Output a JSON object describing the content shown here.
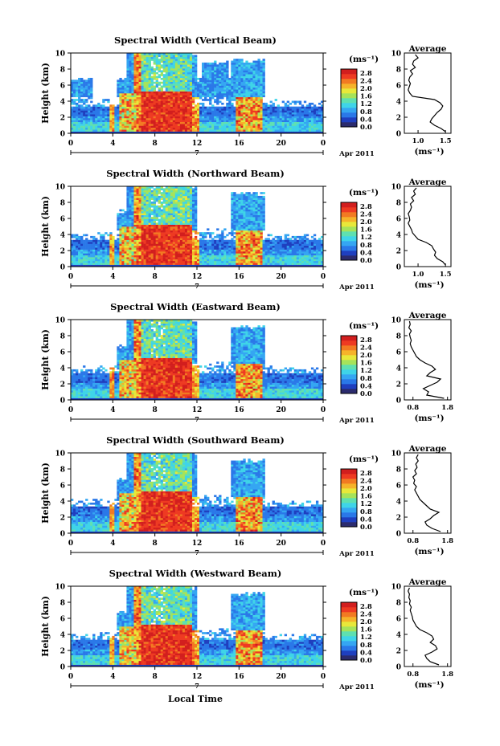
{
  "figure": {
    "date_label": "Apr 2011",
    "date_day": "7",
    "xlabel": "Local Time",
    "unit_label": "(ms⁻¹)",
    "avg_title": "Average",
    "avg_xlabel": "(ms⁻¹)",
    "ylabel": "Height (km)",
    "colormap": [
      "#2b2b6e",
      "#1f3fbf",
      "#2a78e8",
      "#35a6f2",
      "#3fd4e8",
      "#5fe0b0",
      "#a6e35a",
      "#e8e83a",
      "#f6b32a",
      "#f27a22",
      "#ee3a22",
      "#d21e1e"
    ]
  },
  "chart_data": [
    {
      "type": "heatmap",
      "title": "Spectral Width (Vertical Beam)",
      "x_ticks": [
        "0",
        "4",
        "8",
        "12",
        "16",
        "20",
        "0"
      ],
      "xlim": [
        0,
        24
      ],
      "y_ticks": [
        "0",
        "2",
        "4",
        "6",
        "8",
        "10"
      ],
      "ylim": [
        0,
        10
      ],
      "colorbar_ticks": [
        "0.0",
        "0.4",
        "0.8",
        "1.2",
        "1.6",
        "2.0",
        "2.4",
        "2.8"
      ],
      "colorbar_range": [
        0,
        3.0
      ],
      "average": {
        "x_ticks": [
          "1.0",
          "1.5"
        ],
        "xlim": [
          0.75,
          1.6
        ],
        "height": [
          0.2,
          0.6,
          1.0,
          1.4,
          1.8,
          2.2,
          2.6,
          3.0,
          3.4,
          3.8,
          4.2,
          4.6,
          5.0,
          5.4,
          5.8,
          6.2,
          6.6,
          7.0,
          7.4,
          7.8,
          8.2,
          8.6,
          9.0,
          9.4,
          9.8
        ],
        "value": [
          1.5,
          1.42,
          1.3,
          1.22,
          1.25,
          1.3,
          1.35,
          1.42,
          1.45,
          1.4,
          1.3,
          0.9,
          0.85,
          0.82,
          0.84,
          0.86,
          0.83,
          0.85,
          0.9,
          0.86,
          0.95,
          0.9,
          0.92,
          1.0,
          0.95
        ]
      }
    },
    {
      "type": "heatmap",
      "title": "Spectral Width (Northward Beam)",
      "x_ticks": [
        "0",
        "4",
        "8",
        "12",
        "16",
        "20",
        "0"
      ],
      "xlim": [
        0,
        24
      ],
      "y_ticks": [
        "0",
        "2",
        "4",
        "6",
        "8",
        "10"
      ],
      "ylim": [
        0,
        10
      ],
      "colorbar_ticks": [
        "0.0",
        "0.4",
        "0.8",
        "1.2",
        "1.6",
        "2.0",
        "2.4",
        "2.8"
      ],
      "colorbar_range": [
        0,
        3.0
      ],
      "average": {
        "x_ticks": [
          "1.0",
          "1.5"
        ],
        "xlim": [
          0.75,
          1.6
        ],
        "height": [
          0.2,
          0.6,
          1.0,
          1.4,
          1.8,
          2.2,
          2.6,
          3.0,
          3.4,
          3.8,
          4.2,
          4.6,
          5.0,
          5.4,
          5.8,
          6.2,
          6.6,
          7.0,
          7.4,
          7.8,
          8.2,
          8.6,
          9.0,
          9.4,
          9.8
        ],
        "value": [
          1.5,
          1.45,
          1.35,
          1.3,
          1.32,
          1.28,
          1.25,
          1.15,
          1.0,
          0.95,
          0.9,
          0.88,
          0.85,
          0.82,
          0.85,
          0.84,
          0.82,
          0.86,
          0.88,
          0.86,
          0.92,
          0.88,
          0.95,
          0.92,
          0.97
        ]
      }
    },
    {
      "type": "heatmap",
      "title": "Spectral Width (Eastward Beam)",
      "x_ticks": [
        "0",
        "4",
        "8",
        "12",
        "16",
        "20",
        "0"
      ],
      "xlim": [
        0,
        24
      ],
      "y_ticks": [
        "0",
        "2",
        "4",
        "6",
        "8",
        "10"
      ],
      "ylim": [
        0,
        10
      ],
      "colorbar_ticks": [
        "0.0",
        "0.4",
        "0.8",
        "1.2",
        "1.6",
        "2.0",
        "2.4",
        "2.8"
      ],
      "colorbar_range": [
        0,
        3.0
      ],
      "average": {
        "x_ticks": [
          "0.8",
          "1.8"
        ],
        "xlim": [
          0.55,
          1.9
        ],
        "height": [
          0.2,
          0.6,
          1.0,
          1.4,
          1.8,
          2.2,
          2.6,
          3.0,
          3.4,
          3.8,
          4.2,
          4.6,
          5.0,
          5.4,
          5.8,
          6.2,
          6.6,
          7.0,
          7.4,
          7.8,
          8.2,
          8.6,
          9.0,
          9.4,
          9.8
        ],
        "value": [
          1.7,
          1.2,
          1.25,
          1.1,
          1.3,
          1.5,
          1.6,
          1.2,
          1.3,
          1.45,
          1.35,
          1.15,
          1.0,
          0.9,
          0.85,
          0.8,
          0.75,
          0.72,
          0.75,
          0.72,
          0.7,
          0.75,
          0.68,
          0.72,
          0.7
        ]
      }
    },
    {
      "type": "heatmap",
      "title": "Spectral Width (Southward Beam)",
      "x_ticks": [
        "0",
        "4",
        "8",
        "12",
        "16",
        "20",
        "0"
      ],
      "xlim": [
        0,
        24
      ],
      "y_ticks": [
        "0",
        "2",
        "4",
        "6",
        "8",
        "10"
      ],
      "ylim": [
        0,
        10
      ],
      "colorbar_ticks": [
        "0.0",
        "0.4",
        "0.8",
        "1.2",
        "1.6",
        "2.0",
        "2.4",
        "2.8"
      ],
      "colorbar_range": [
        0,
        3.0
      ],
      "average": {
        "x_ticks": [
          "0.8",
          "1.8"
        ],
        "xlim": [
          0.55,
          1.9
        ],
        "height": [
          0.2,
          0.6,
          1.0,
          1.4,
          1.8,
          2.2,
          2.6,
          3.0,
          3.4,
          3.8,
          4.2,
          4.6,
          5.0,
          5.4,
          5.8,
          6.2,
          6.6,
          7.0,
          7.4,
          7.8,
          8.2,
          8.6,
          9.0,
          9.4,
          9.8
        ],
        "value": [
          1.6,
          1.35,
          1.2,
          1.15,
          1.3,
          1.4,
          1.55,
          1.3,
          1.2,
          1.1,
          1.0,
          0.95,
          0.9,
          0.85,
          0.9,
          0.82,
          0.85,
          0.8,
          0.9,
          0.85,
          0.92,
          0.88,
          0.95,
          0.9,
          0.95
        ]
      }
    },
    {
      "type": "heatmap",
      "title": "Spectral Width (Westward Beam)",
      "x_ticks": [
        "0",
        "4",
        "8",
        "12",
        "16",
        "20",
        "0"
      ],
      "xlim": [
        0,
        24
      ],
      "y_ticks": [
        "0",
        "2",
        "4",
        "6",
        "8",
        "10"
      ],
      "ylim": [
        0,
        10
      ],
      "colorbar_ticks": [
        "0.0",
        "0.4",
        "0.8",
        "1.2",
        "1.6",
        "2.0",
        "2.4",
        "2.8"
      ],
      "colorbar_range": [
        0,
        3.0
      ],
      "average": {
        "x_ticks": [
          "0.8",
          "1.8"
        ],
        "xlim": [
          0.55,
          1.9
        ],
        "height": [
          0.2,
          0.6,
          1.0,
          1.4,
          1.8,
          2.2,
          2.6,
          3.0,
          3.4,
          3.8,
          4.2,
          4.6,
          5.0,
          5.4,
          5.8,
          6.2,
          6.6,
          7.0,
          7.4,
          7.8,
          8.2,
          8.6,
          9.0,
          9.4,
          9.8
        ],
        "value": [
          1.55,
          1.3,
          1.2,
          1.15,
          1.35,
          1.5,
          1.45,
          1.3,
          1.4,
          1.35,
          1.2,
          1.0,
          0.9,
          0.85,
          0.8,
          0.78,
          0.75,
          0.72,
          0.75,
          0.7,
          0.72,
          0.68,
          0.7,
          0.66,
          0.7
        ]
      }
    }
  ]
}
